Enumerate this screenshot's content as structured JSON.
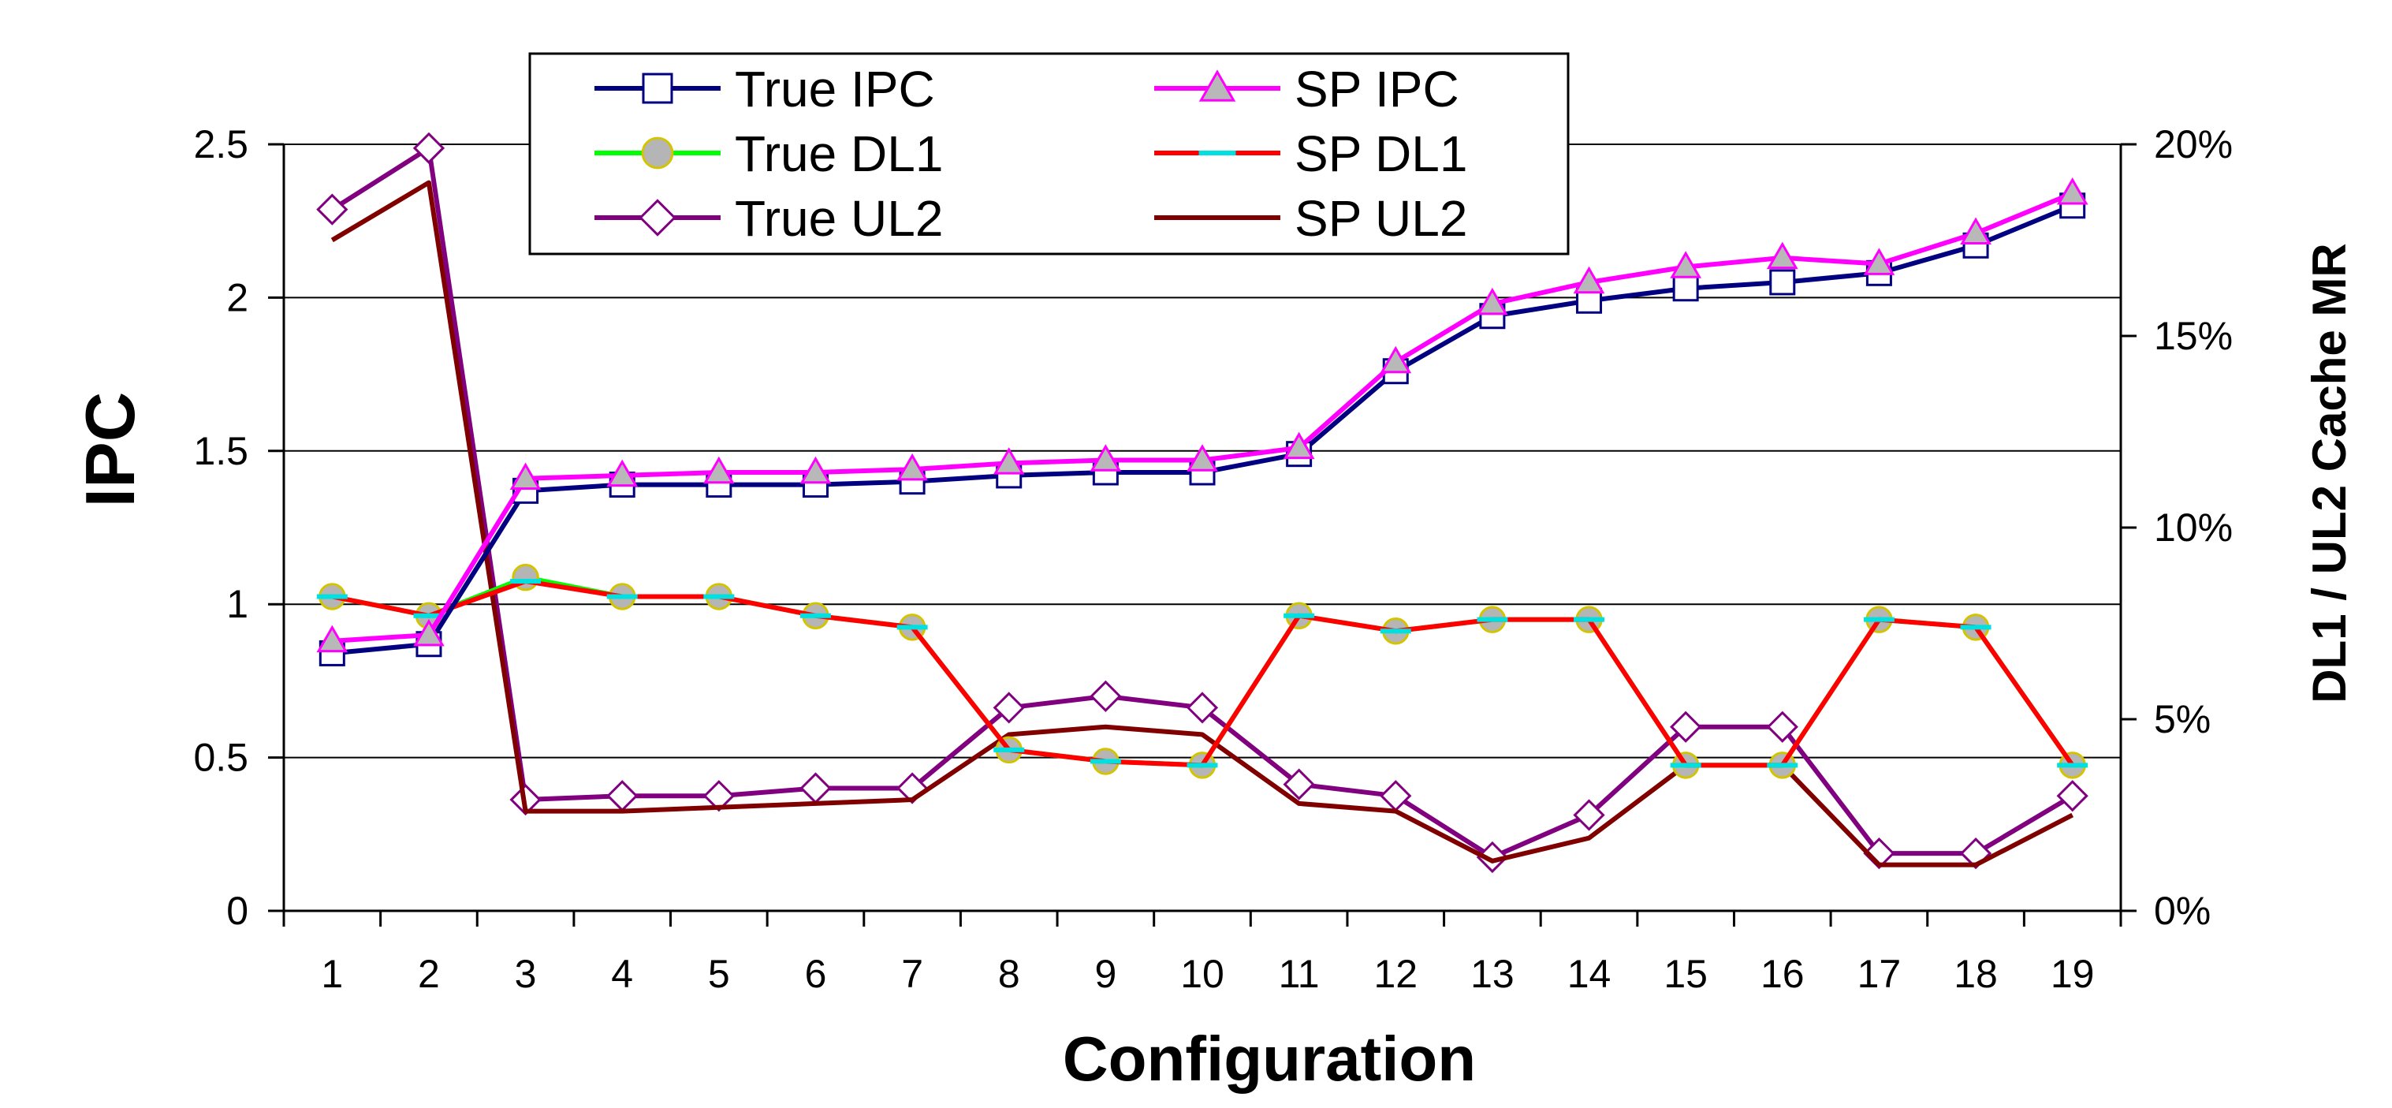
{
  "chart_data": {
    "type": "line",
    "title": "",
    "xlabel": "Configuration",
    "ylabel": "IPC",
    "y2label": "DL1 / UL2 Cache MR",
    "categories": [
      "1",
      "2",
      "3",
      "4",
      "5",
      "6",
      "7",
      "8",
      "9",
      "10",
      "11",
      "12",
      "13",
      "14",
      "15",
      "16",
      "17",
      "18",
      "19"
    ],
    "ylim": [
      0,
      2.5
    ],
    "yticks": [
      "0",
      "0.5",
      "1",
      "1.5",
      "2",
      "2.5"
    ],
    "y2lim": [
      0,
      20
    ],
    "y2ticks": [
      "0%",
      "5%",
      "10%",
      "15%",
      "20%"
    ],
    "grid": true,
    "legend": "top-left",
    "series": [
      {
        "name": "True IPC",
        "axis": "left",
        "color": "#000080",
        "marker": "square",
        "values": [
          0.84,
          0.87,
          1.37,
          1.39,
          1.39,
          1.39,
          1.4,
          1.42,
          1.43,
          1.43,
          1.49,
          1.76,
          1.94,
          1.99,
          2.03,
          2.05,
          2.08,
          2.17,
          2.3
        ]
      },
      {
        "name": "SP IPC",
        "axis": "left",
        "color": "#ff00ff",
        "marker": "triangle",
        "values": [
          0.88,
          0.9,
          1.41,
          1.42,
          1.43,
          1.43,
          1.44,
          1.46,
          1.47,
          1.47,
          1.51,
          1.79,
          1.98,
          2.05,
          2.1,
          2.13,
          2.11,
          2.21,
          2.34
        ]
      },
      {
        "name": "True DL1",
        "axis": "right",
        "color": "#00ff00",
        "marker": "circle",
        "values": [
          8.2,
          7.7,
          8.7,
          8.2,
          8.2,
          7.7,
          7.4,
          4.2,
          3.9,
          3.8,
          7.7,
          7.3,
          7.6,
          7.6,
          3.8,
          3.8,
          7.6,
          7.4,
          3.8
        ]
      },
      {
        "name": "SP DL1",
        "axis": "right",
        "color": "#ff0000",
        "marker": "dash",
        "values": [
          8.2,
          7.7,
          8.6,
          8.2,
          8.2,
          7.7,
          7.4,
          4.2,
          3.9,
          3.8,
          7.7,
          7.3,
          7.6,
          7.6,
          3.8,
          3.8,
          7.6,
          7.4,
          3.8
        ]
      },
      {
        "name": "True UL2",
        "axis": "right",
        "color": "#800080",
        "marker": "diamond",
        "values": [
          18.3,
          19.9,
          2.9,
          3.0,
          3.0,
          3.2,
          3.2,
          5.3,
          5.6,
          5.3,
          3.3,
          3.0,
          1.4,
          2.5,
          4.8,
          4.8,
          1.5,
          1.5,
          3.0
        ]
      },
      {
        "name": "SP UL2",
        "axis": "right",
        "color": "#800000",
        "marker": "none",
        "values": [
          17.5,
          19.0,
          2.6,
          2.6,
          2.7,
          2.8,
          2.9,
          4.6,
          4.8,
          4.6,
          2.8,
          2.6,
          1.3,
          1.9,
          3.8,
          3.8,
          1.2,
          1.2,
          2.5
        ]
      }
    ]
  }
}
